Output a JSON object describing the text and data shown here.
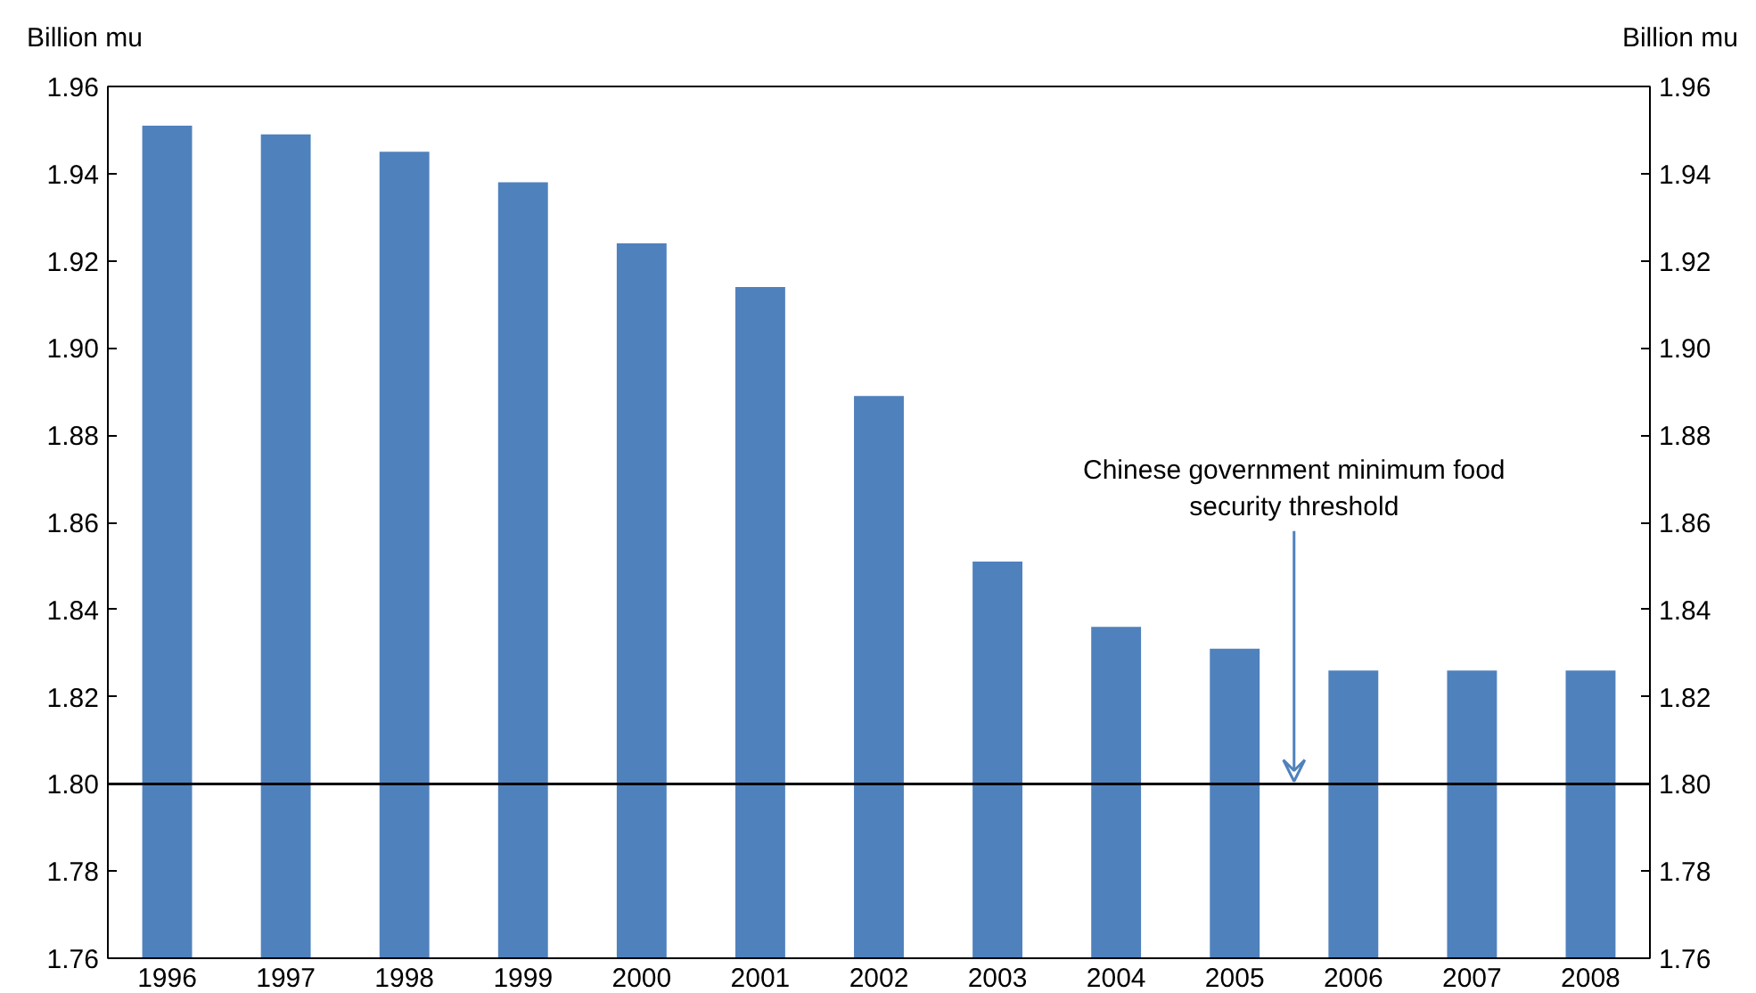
{
  "chart_data": {
    "type": "bar",
    "ylabel": "Billion mu",
    "y2label": "Billion mu",
    "categories": [
      "1996",
      "1997",
      "1998",
      "1999",
      "2000",
      "2001",
      "2002",
      "2003",
      "2004",
      "2005",
      "2006",
      "2007",
      "2008"
    ],
    "values": [
      1.951,
      1.949,
      1.945,
      1.938,
      1.924,
      1.914,
      1.889,
      1.851,
      1.836,
      1.831,
      1.826,
      1.826,
      1.826
    ],
    "color": "#4f81bd",
    "ylim": [
      1.76,
      1.96
    ],
    "yticks": [
      {
        "value": 1.76,
        "label": "1.76"
      },
      {
        "value": 1.78,
        "label": "1.78"
      },
      {
        "value": 1.8,
        "label": "1.80"
      },
      {
        "value": 1.82,
        "label": "1.82"
      },
      {
        "value": 1.84,
        "label": "1.84"
      },
      {
        "value": 1.86,
        "label": "1.86"
      },
      {
        "value": 1.88,
        "label": "1.88"
      },
      {
        "value": 1.9,
        "label": "1.90"
      },
      {
        "value": 1.92,
        "label": "1.92"
      },
      {
        "value": 1.94,
        "label": "1.94"
      },
      {
        "value": 1.96,
        "label": "1.96"
      }
    ],
    "y2lim": [
      1.76,
      1.96
    ],
    "y2ticks": [
      {
        "value": 1.76,
        "label": "1.76"
      },
      {
        "value": 1.78,
        "label": "1.78"
      },
      {
        "value": 1.8,
        "label": "1.80"
      },
      {
        "value": 1.82,
        "label": "1.82"
      },
      {
        "value": 1.84,
        "label": "1.84"
      },
      {
        "value": 1.86,
        "label": "1.86"
      },
      {
        "value": 1.88,
        "label": "1.88"
      },
      {
        "value": 1.9,
        "label": "1.90"
      },
      {
        "value": 1.92,
        "label": "1.92"
      },
      {
        "value": 1.94,
        "label": "1.94"
      },
      {
        "value": 1.96,
        "label": "1.96"
      }
    ],
    "ref_lines": [
      {
        "axis": "y",
        "value": 1.8,
        "label": "Chinese government minimum food security threshold",
        "color": "#000000"
      }
    ],
    "grid": false
  }
}
